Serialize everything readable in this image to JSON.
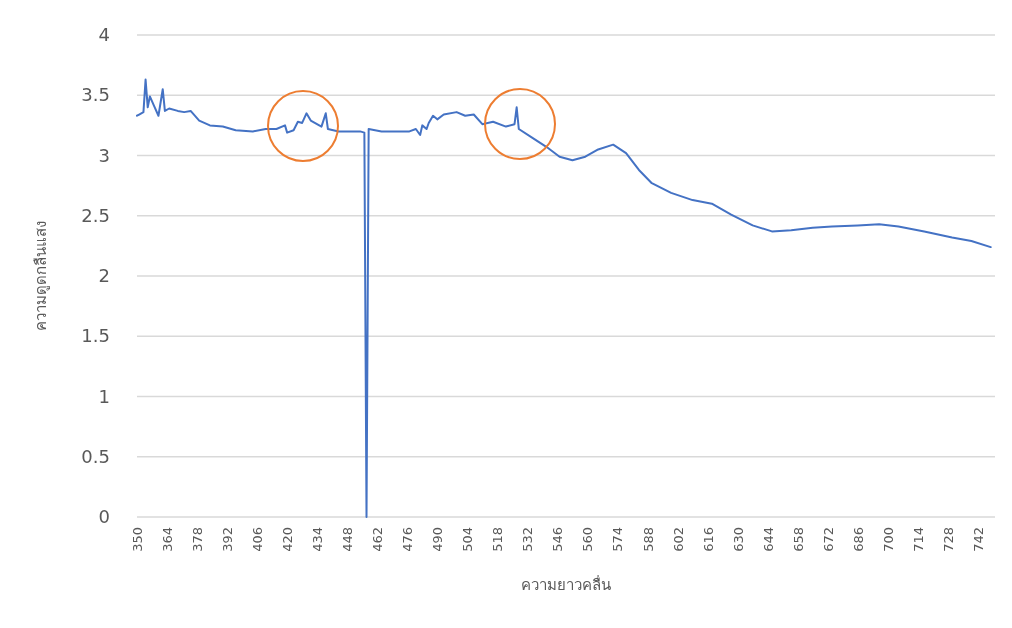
{
  "chart_data": {
    "type": "line",
    "xlabel": "ความยาวคลื่น",
    "ylabel": "ความดูดกลืนแสง",
    "color": "#4472c4",
    "grid": "y",
    "marker": "none",
    "line_style": "solid",
    "xlim": [
      350,
      750
    ],
    "xticks": [
      350,
      364,
      378,
      392,
      406,
      420,
      434,
      448,
      462,
      476,
      490,
      504,
      518,
      532,
      546,
      560,
      574,
      588,
      602,
      616,
      630,
      644,
      658,
      672,
      686,
      700,
      714,
      728,
      742
    ],
    "ylim": [
      0,
      4
    ],
    "yticks": [
      0,
      0.5,
      1,
      1.5,
      2,
      2.5,
      3,
      3.5,
      4
    ],
    "x": [
      350,
      351,
      353,
      354,
      355,
      356,
      358,
      360,
      362,
      363,
      365,
      369,
      372,
      375,
      379,
      384,
      390,
      396,
      404,
      410,
      415,
      419,
      420,
      423,
      425,
      427,
      429,
      431,
      436,
      438,
      439,
      444,
      454,
      456,
      457,
      458,
      464,
      471,
      477,
      480,
      482,
      483,
      485,
      486,
      488,
      490,
      493,
      499,
      503,
      507,
      511,
      516,
      522,
      526,
      527,
      528,
      534,
      541,
      547,
      553,
      559,
      565,
      572,
      578,
      584,
      590,
      599,
      609,
      618,
      627,
      637,
      646,
      655,
      665,
      674,
      686,
      696,
      705,
      717,
      730,
      739,
      748
    ],
    "values": [
      3.33,
      3.34,
      3.36,
      3.63,
      3.4,
      3.49,
      3.41,
      3.33,
      3.55,
      3.37,
      3.39,
      3.37,
      3.36,
      3.37,
      3.29,
      3.25,
      3.24,
      3.21,
      3.2,
      3.22,
      3.22,
      3.25,
      3.19,
      3.21,
      3.28,
      3.27,
      3.35,
      3.29,
      3.24,
      3.35,
      3.22,
      3.2,
      3.2,
      3.19,
      0,
      3.22,
      3.2,
      3.2,
      3.2,
      3.22,
      3.17,
      3.25,
      3.22,
      3.27,
      3.33,
      3.3,
      3.34,
      3.36,
      3.33,
      3.34,
      3.26,
      3.28,
      3.24,
      3.26,
      3.4,
      3.22,
      3.15,
      3.07,
      2.99,
      2.96,
      2.99,
      3.05,
      3.09,
      3.02,
      2.88,
      2.77,
      2.69,
      2.63,
      2.6,
      2.51,
      2.42,
      2.37,
      2.38,
      2.4,
      2.41,
      2.42,
      2.43,
      2.41,
      2.37,
      2.32,
      2.29,
      2.24
    ]
  }
}
